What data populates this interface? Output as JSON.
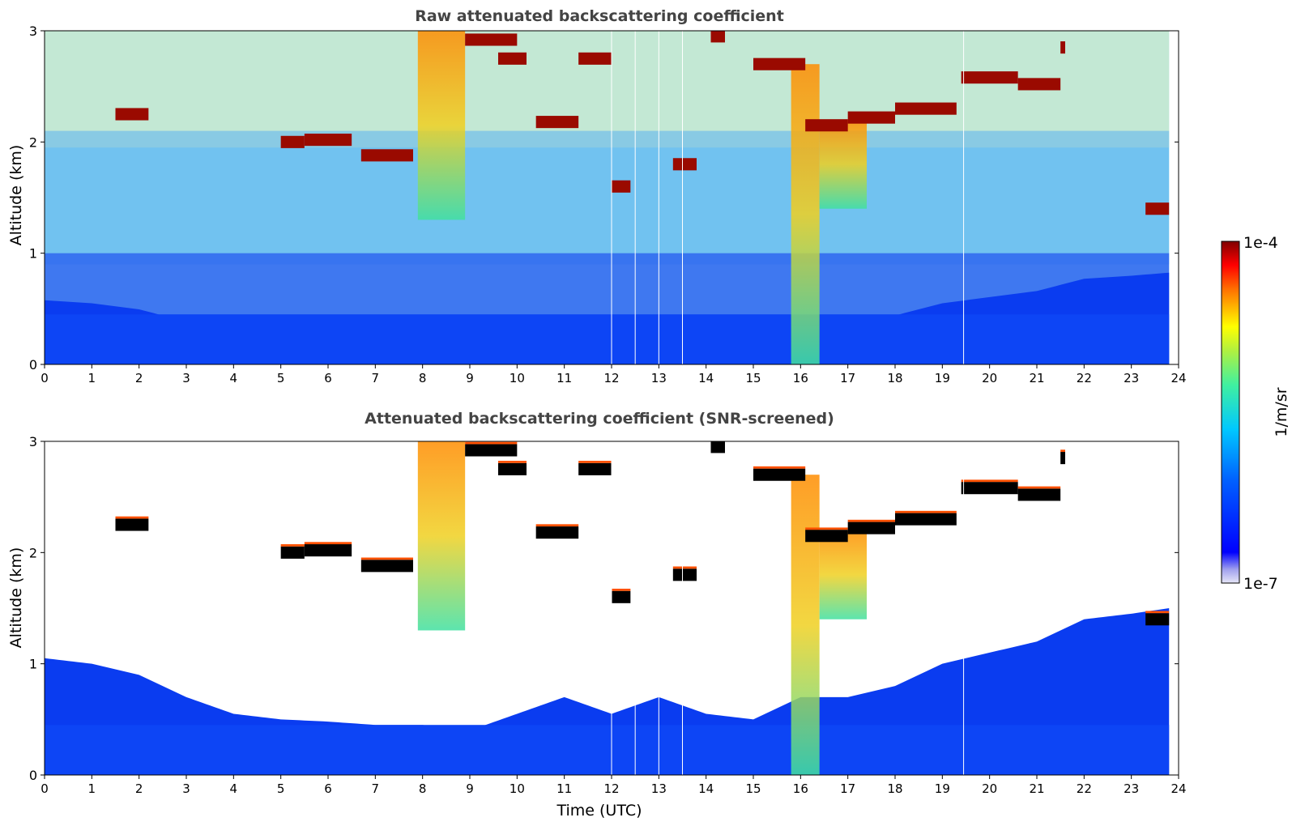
{
  "figure": {
    "xlabel": "Time (UTC)",
    "colorbar": {
      "label": "1/m/sr",
      "tick_labels": [
        "1e-4",
        "1e-7"
      ],
      "colormap": "jet",
      "range": [
        1e-07,
        0.0001
      ],
      "scale": "log"
    }
  },
  "chart_data": [
    {
      "type": "heatmap",
      "title": "Raw attenuated backscattering coefficient",
      "xlabel": "",
      "ylabel": "Altitude (km)",
      "xlim": [
        0,
        24
      ],
      "ylim": [
        0,
        3
      ],
      "x_ticks": [
        0,
        1,
        2,
        3,
        4,
        5,
        6,
        7,
        8,
        9,
        10,
        11,
        12,
        13,
        14,
        15,
        16,
        17,
        18,
        19,
        20,
        21,
        22,
        23,
        24
      ],
      "y_ticks": [
        0,
        1,
        2,
        3
      ],
      "data_end_time": 23.8,
      "screened": false,
      "cloud_layers": [
        {
          "t0": 1.5,
          "t1": 2.2,
          "alt": 2.25
        },
        {
          "t0": 5.0,
          "t1": 5.5,
          "alt": 2.0
        },
        {
          "t0": 5.5,
          "t1": 6.5,
          "alt": 2.02
        },
        {
          "t0": 6.7,
          "t1": 7.8,
          "alt": 1.88
        },
        {
          "t0": 8.9,
          "t1": 10.0,
          "alt": 2.92
        },
        {
          "t0": 9.6,
          "t1": 10.2,
          "alt": 2.75
        },
        {
          "t0": 10.4,
          "t1": 11.3,
          "alt": 2.18
        },
        {
          "t0": 11.3,
          "t1": 12.0,
          "alt": 2.75
        },
        {
          "t0": 12.0,
          "t1": 12.4,
          "alt": 1.6
        },
        {
          "t0": 13.3,
          "t1": 13.8,
          "alt": 1.8
        },
        {
          "t0": 14.1,
          "t1": 14.4,
          "alt": 2.95
        },
        {
          "t0": 15.0,
          "t1": 16.1,
          "alt": 2.7
        },
        {
          "t0": 16.1,
          "t1": 17.0,
          "alt": 2.15
        },
        {
          "t0": 17.0,
          "t1": 18.0,
          "alt": 2.22
        },
        {
          "t0": 18.0,
          "t1": 19.3,
          "alt": 2.3
        },
        {
          "t0": 19.4,
          "t1": 20.6,
          "alt": 2.58
        },
        {
          "t0": 20.6,
          "t1": 21.5,
          "alt": 2.52
        },
        {
          "t0": 21.5,
          "t1": 21.6,
          "alt": 2.85
        },
        {
          "t0": 23.3,
          "t1": 23.8,
          "alt": 1.4
        }
      ],
      "precip_streaks": [
        {
          "t0": 7.9,
          "t1": 8.9,
          "top": 3.0,
          "bottom": 1.3
        },
        {
          "t0": 15.8,
          "t1": 16.4,
          "top": 2.7,
          "bottom": 0.0
        },
        {
          "t0": 16.4,
          "t1": 17.4,
          "top": 2.2,
          "bottom": 1.4
        }
      ],
      "boundary_layer_top_km": [
        [
          0,
          1.05
        ],
        [
          1,
          1.0
        ],
        [
          2,
          0.9
        ],
        [
          3,
          0.7
        ],
        [
          4,
          0.55
        ],
        [
          5,
          0.5
        ],
        [
          6,
          0.48
        ],
        [
          7,
          0.45
        ],
        [
          8,
          0.45
        ],
        [
          9,
          0.4
        ],
        [
          10,
          0.55
        ],
        [
          11,
          0.7
        ],
        [
          12,
          0.55
        ],
        [
          13,
          0.7
        ],
        [
          14,
          0.55
        ],
        [
          15,
          0.5
        ],
        [
          16,
          0.7
        ],
        [
          17,
          0.7
        ],
        [
          18,
          0.8
        ],
        [
          19,
          1.0
        ],
        [
          20,
          1.1
        ],
        [
          21,
          1.2
        ],
        [
          22,
          1.4
        ],
        [
          23,
          1.45
        ],
        [
          23.8,
          1.5
        ]
      ]
    },
    {
      "type": "heatmap",
      "title": "Attenuated backscattering coefficient (SNR-screened)",
      "xlabel": "Time (UTC)",
      "ylabel": "Altitude (km)",
      "xlim": [
        0,
        24
      ],
      "ylim": [
        0,
        3
      ],
      "x_ticks": [
        0,
        1,
        2,
        3,
        4,
        5,
        6,
        7,
        8,
        9,
        10,
        11,
        12,
        13,
        14,
        15,
        16,
        17,
        18,
        19,
        20,
        21,
        22,
        23,
        24
      ],
      "y_ticks": [
        0,
        1,
        2,
        3
      ],
      "data_end_time": 23.8,
      "screened": true,
      "missing_value_color": "#000000"
    }
  ]
}
